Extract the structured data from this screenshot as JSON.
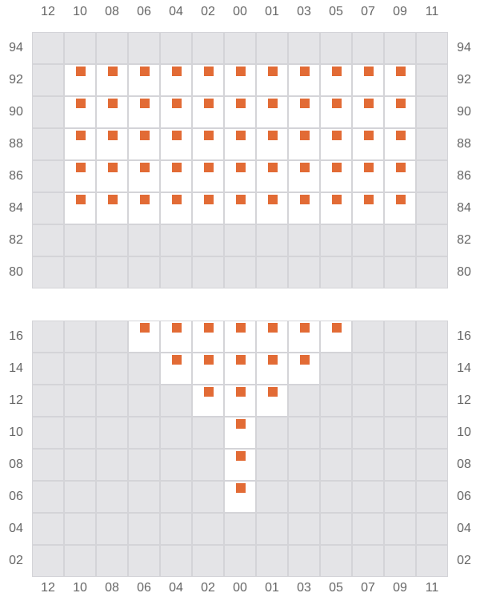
{
  "colors": {
    "mark": "#e26b35",
    "open_cell": "#ffffff",
    "closed_cell": "#e4e4e7",
    "grid_line": "#d4d4d8"
  },
  "columns": [
    "12",
    "10",
    "08",
    "06",
    "04",
    "02",
    "00",
    "01",
    "03",
    "05",
    "07",
    "09",
    "11"
  ],
  "grids": [
    {
      "rows": [
        {
          "label": "94",
          "marked": []
        },
        {
          "label": "92",
          "marked": [
            "10",
            "08",
            "06",
            "04",
            "02",
            "00",
            "01",
            "03",
            "05",
            "07",
            "09"
          ]
        },
        {
          "label": "90",
          "marked": [
            "10",
            "08",
            "06",
            "04",
            "02",
            "00",
            "01",
            "03",
            "05",
            "07",
            "09"
          ]
        },
        {
          "label": "88",
          "marked": [
            "10",
            "08",
            "06",
            "04",
            "02",
            "00",
            "01",
            "03",
            "05",
            "07",
            "09"
          ]
        },
        {
          "label": "86",
          "marked": [
            "10",
            "08",
            "06",
            "04",
            "02",
            "00",
            "01",
            "03",
            "05",
            "07",
            "09"
          ]
        },
        {
          "label": "84",
          "marked": [
            "10",
            "08",
            "06",
            "04",
            "02",
            "00",
            "01",
            "03",
            "05",
            "07",
            "09"
          ]
        },
        {
          "label": "82",
          "marked": []
        },
        {
          "label": "80",
          "marked": []
        }
      ]
    },
    {
      "rows": [
        {
          "label": "16",
          "marked": [
            "06",
            "04",
            "02",
            "00",
            "01",
            "03",
            "05"
          ]
        },
        {
          "label": "14",
          "marked": [
            "04",
            "02",
            "00",
            "01",
            "03"
          ]
        },
        {
          "label": "12",
          "marked": [
            "02",
            "00",
            "01"
          ]
        },
        {
          "label": "10",
          "marked": [
            "00"
          ]
        },
        {
          "label": "08",
          "marked": [
            "00"
          ]
        },
        {
          "label": "06",
          "marked": [
            "00"
          ]
        },
        {
          "label": "04",
          "marked": []
        },
        {
          "label": "02",
          "marked": []
        }
      ]
    }
  ]
}
